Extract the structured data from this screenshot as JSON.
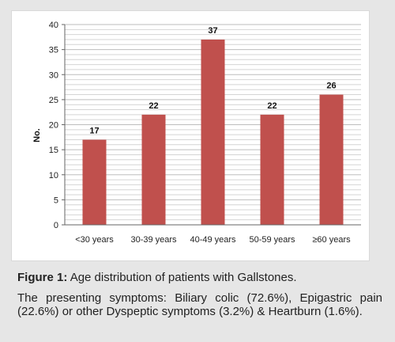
{
  "chart_data": {
    "type": "bar",
    "categories": [
      "<30 years",
      "30-39 years",
      "40-49 years",
      "50-59 years",
      "≥60 years"
    ],
    "values": [
      17,
      22,
      37,
      22,
      26
    ],
    "ylabel": "No.",
    "xlabel": "",
    "ylim": [
      0,
      40
    ],
    "yticks": [
      0,
      5,
      10,
      15,
      20,
      25,
      30,
      35,
      40
    ],
    "grid": true,
    "bar_color": "#c0504d"
  },
  "figure": {
    "label": "Figure 1:",
    "caption": "Age distribution of patients with Gallstones."
  },
  "body_text": "The presenting symptoms: Biliary colic (72.6%), Epigastric pain (22.6%) or other Dyspeptic symptoms (3.2%) & Heartburn (1.6%)."
}
